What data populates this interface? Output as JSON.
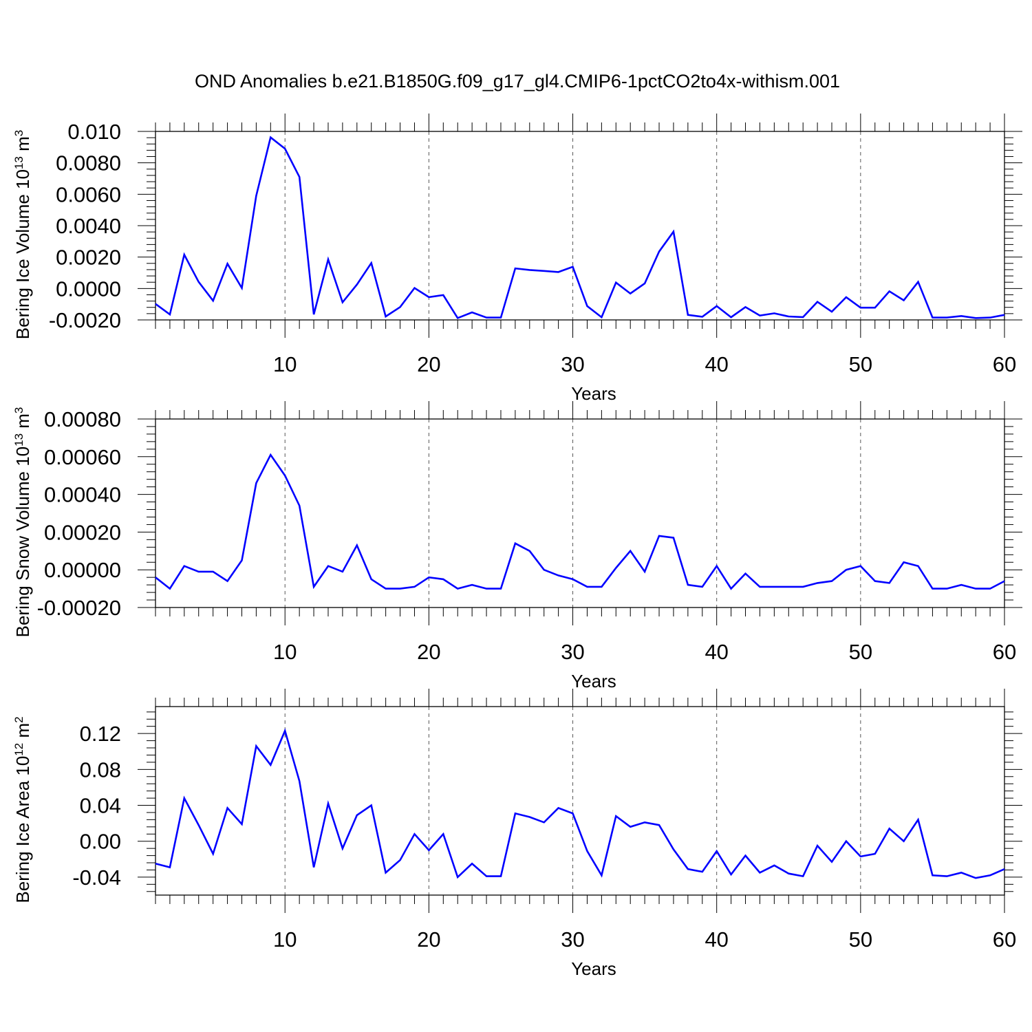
{
  "title": "OND Anomalies b.e21.B1850G.f09_g17_gl4.CMIP6-1pctCO2to4x-withism.001",
  "chart_data": [
    {
      "type": "line",
      "xlabel": "Years",
      "ylabel": {
        "text": "Bering Ice Volume 10",
        "exp": "13",
        "unit": " m",
        "unit_exp": "3"
      },
      "xlim": [
        1,
        60
      ],
      "ylim": [
        -0.002,
        0.01
      ],
      "xticks": [
        10,
        20,
        30,
        40,
        50,
        60
      ],
      "xtick_labels": [
        "10",
        "20",
        "30",
        "40",
        "50",
        "60"
      ],
      "yticks": [
        -0.002,
        0.0,
        0.002,
        0.004,
        0.006,
        0.008,
        0.01
      ],
      "ytick_labels": [
        "-0.0020",
        "0.0000",
        "0.0020",
        "0.0040",
        "0.0060",
        "0.0080",
        "0.010"
      ],
      "grid": "vertical dashed at major x ticks",
      "color": "#0000ff",
      "series": [
        {
          "x": [
            1,
            2,
            3,
            4,
            5,
            6,
            7,
            8,
            9,
            10,
            11,
            12,
            13,
            14,
            15,
            16,
            17,
            18,
            19,
            20,
            21,
            22,
            23,
            24,
            25,
            26,
            27,
            28,
            29,
            30,
            31,
            32,
            33,
            34,
            35,
            36,
            37,
            38,
            39,
            40,
            41,
            42,
            43,
            44,
            45,
            46,
            47,
            48,
            49,
            50,
            51,
            52,
            53,
            54,
            55,
            56,
            57,
            58,
            59,
            60
          ],
          "values": [
            -0.00098,
            -0.00165,
            0.00215,
            0.00042,
            -0.00078,
            0.00158,
            3e-05,
            0.0059,
            0.00962,
            0.0089,
            0.0071,
            -0.00165,
            0.00185,
            -0.00088,
            0.00025,
            0.00162,
            -0.00178,
            -0.00118,
            3e-05,
            -0.00055,
            -0.00042,
            -0.00188,
            -0.00152,
            -0.00185,
            -0.00185,
            0.00128,
            0.00118,
            0.00112,
            0.00105,
            0.00138,
            -0.00112,
            -0.00183,
            0.00038,
            -0.00032,
            0.00032,
            0.00235,
            0.00362,
            -0.00168,
            -0.0018,
            -0.00112,
            -0.00183,
            -0.00118,
            -0.00172,
            -0.00158,
            -0.00178,
            -0.00182,
            -0.00085,
            -0.00148,
            -0.00055,
            -0.00122,
            -0.00122,
            -0.00018,
            -0.00075,
            0.00042,
            -0.00185,
            -0.00185,
            -0.00175,
            -0.00188,
            -0.00185,
            -0.00168
          ]
        }
      ]
    },
    {
      "type": "line",
      "xlabel": "Years",
      "ylabel": {
        "text": "Bering Snow Volume 10",
        "exp": "13",
        "unit": " m",
        "unit_exp": "3"
      },
      "xlim": [
        1,
        60
      ],
      "ylim": [
        -0.0002,
        0.0008
      ],
      "xticks": [
        10,
        20,
        30,
        40,
        50,
        60
      ],
      "xtick_labels": [
        "10",
        "20",
        "30",
        "40",
        "50",
        "60"
      ],
      "yticks": [
        -0.0002,
        0.0,
        0.0002,
        0.0004,
        0.0006,
        0.0008
      ],
      "ytick_labels": [
        "-0.00020",
        "0.00000",
        "0.00020",
        "0.00040",
        "0.00060",
        "0.00080"
      ],
      "grid": "vertical dashed at major x ticks",
      "color": "#0000ff",
      "series": [
        {
          "x": [
            1,
            2,
            3,
            4,
            5,
            6,
            7,
            8,
            9,
            10,
            11,
            12,
            13,
            14,
            15,
            16,
            17,
            18,
            19,
            20,
            21,
            22,
            23,
            24,
            25,
            26,
            27,
            28,
            29,
            30,
            31,
            32,
            33,
            34,
            35,
            36,
            37,
            38,
            39,
            40,
            41,
            42,
            43,
            44,
            45,
            46,
            47,
            48,
            49,
            50,
            51,
            52,
            53,
            54,
            55,
            56,
            57,
            58,
            59,
            60
          ],
          "values": [
            -4e-05,
            -0.0001,
            2e-05,
            -1e-05,
            -1e-05,
            -6e-05,
            5e-05,
            0.00046,
            0.00061,
            0.0005,
            0.00034,
            -9e-05,
            2e-05,
            -1e-05,
            0.00013,
            -5e-05,
            -0.0001,
            -0.0001,
            -9e-05,
            -4e-05,
            -5e-05,
            -0.0001,
            -8e-05,
            -0.0001,
            -0.0001,
            0.00014,
            0.0001,
            0.0,
            -3e-05,
            -5e-05,
            -9e-05,
            -9e-05,
            1e-05,
            0.0001,
            -1e-05,
            0.00018,
            0.00017,
            -8e-05,
            -9e-05,
            2e-05,
            -0.0001,
            -2e-05,
            -9e-05,
            -9e-05,
            -9e-05,
            -9e-05,
            -7e-05,
            -6e-05,
            0.0,
            2e-05,
            -6e-05,
            -7e-05,
            4e-05,
            2e-05,
            -0.0001,
            -0.0001,
            -8e-05,
            -0.0001,
            -0.0001,
            -6e-05
          ]
        }
      ]
    },
    {
      "type": "line",
      "xlabel": "Years",
      "ylabel": {
        "text": "Bering Ice Area 10",
        "exp": "12",
        "unit": " m",
        "unit_exp": "2"
      },
      "xlim": [
        1,
        60
      ],
      "ylim": [
        -0.06,
        0.15
      ],
      "xticks": [
        10,
        20,
        30,
        40,
        50,
        60
      ],
      "xtick_labels": [
        "10",
        "20",
        "30",
        "40",
        "50",
        "60"
      ],
      "yticks": [
        -0.04,
        0.0,
        0.04,
        0.08,
        0.12
      ],
      "ytick_labels": [
        "-0.04",
        "0.00",
        "0.04",
        "0.08",
        "0.12"
      ],
      "grid": "vertical dashed at major x ticks",
      "color": "#0000ff",
      "series": [
        {
          "x": [
            1,
            2,
            3,
            4,
            5,
            6,
            7,
            8,
            9,
            10,
            11,
            12,
            13,
            14,
            15,
            16,
            17,
            18,
            19,
            20,
            21,
            22,
            23,
            24,
            25,
            26,
            27,
            28,
            29,
            30,
            31,
            32,
            33,
            34,
            35,
            36,
            37,
            38,
            39,
            40,
            41,
            42,
            43,
            44,
            45,
            46,
            47,
            48,
            49,
            50,
            51,
            52,
            53,
            54,
            55,
            56,
            57,
            58,
            59,
            60
          ],
          "values": [
            -0.025,
            -0.029,
            0.048,
            0.018,
            -0.014,
            0.037,
            0.019,
            0.106,
            0.085,
            0.123,
            0.067,
            -0.029,
            0.042,
            -0.008,
            0.029,
            0.04,
            -0.035,
            -0.021,
            0.008,
            -0.01,
            0.008,
            -0.04,
            -0.025,
            -0.039,
            -0.039,
            0.031,
            0.027,
            0.021,
            0.037,
            0.031,
            -0.011,
            -0.038,
            0.028,
            0.016,
            0.021,
            0.018,
            -0.009,
            -0.031,
            -0.034,
            -0.011,
            -0.037,
            -0.016,
            -0.035,
            -0.027,
            -0.036,
            -0.039,
            -0.005,
            -0.023,
            0.0,
            -0.017,
            -0.014,
            0.014,
            0.0,
            0.024,
            -0.038,
            -0.039,
            -0.035,
            -0.041,
            -0.038,
            -0.031
          ]
        }
      ]
    }
  ]
}
